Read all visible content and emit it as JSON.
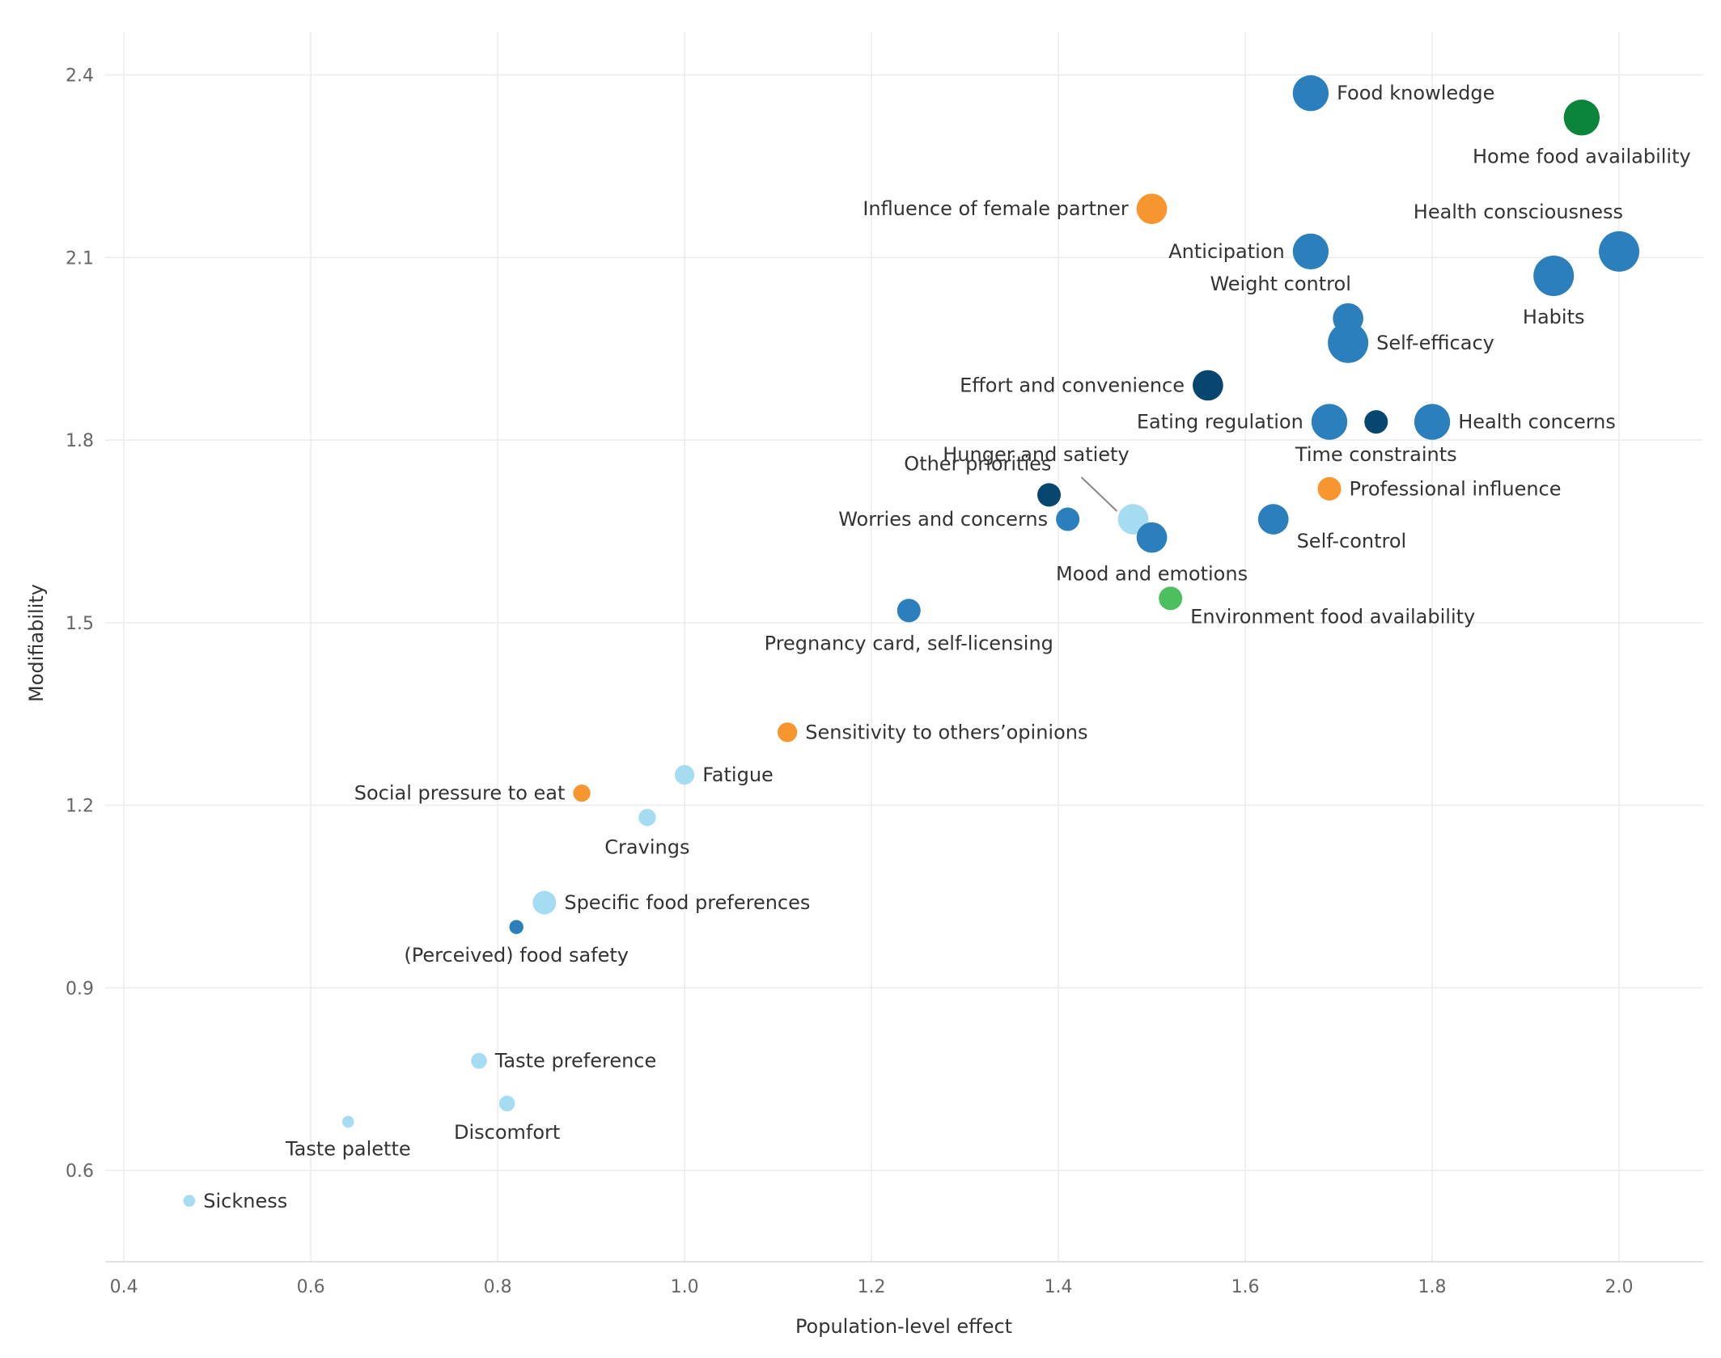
{
  "colors": {
    "light_blue": "#a6dcf2",
    "mid_blue": "#2b7fbc",
    "dark_blue": "#06466f",
    "orange": "#f7962e",
    "dark_green": "#0b843c",
    "light_green": "#4cbf5f"
  },
  "chart_data": {
    "type": "scatter",
    "title": "",
    "xlabel": "Population-level effect",
    "ylabel": "Modifiability",
    "xlim": [
      0.38,
      2.09
    ],
    "ylim": [
      0.45,
      2.47
    ],
    "xticks": [
      0.4,
      0.6,
      0.8,
      1.0,
      1.2,
      1.4,
      1.6,
      1.8,
      2.0
    ],
    "yticks": [
      0.6,
      0.9,
      1.2,
      1.5,
      1.8,
      2.1,
      2.4
    ],
    "xtick_labels": [
      "0.4",
      "0.6",
      "0.8",
      "1.0",
      "1.2",
      "1.4",
      "1.6",
      "1.8",
      "2.0"
    ],
    "ytick_labels": [
      "0.6",
      "0.9",
      "1.2",
      "1.5",
      "1.8",
      "2.1",
      "2.4"
    ],
    "grid": true,
    "points": [
      {
        "label": "Food knowledge",
        "x": 1.67,
        "y": 2.37,
        "size": 3,
        "color": "mid_blue",
        "label_pos": "right"
      },
      {
        "label": "Home food availability",
        "x": 1.96,
        "y": 2.33,
        "size": 3,
        "color": "dark_green",
        "label_pos": "below"
      },
      {
        "label": "Influence of female partner",
        "x": 1.5,
        "y": 2.18,
        "size": 2,
        "color": "orange",
        "label_pos": "left"
      },
      {
        "label": "Health consciousness",
        "x": 2.0,
        "y": 2.11,
        "size": 4,
        "color": "mid_blue",
        "label_pos": "above-left"
      },
      {
        "label": "Anticipation",
        "x": 1.67,
        "y": 2.11,
        "size": 3,
        "color": "mid_blue",
        "label_pos": "left"
      },
      {
        "label": "Habits",
        "x": 1.93,
        "y": 2.07,
        "size": 4,
        "color": "mid_blue",
        "label_pos": "below"
      },
      {
        "label": "Weight control",
        "x": 1.71,
        "y": 2.0,
        "size": 2,
        "color": "mid_blue",
        "label_pos": "above-left"
      },
      {
        "label": "Self-efficacy",
        "x": 1.71,
        "y": 1.96,
        "size": 4,
        "color": "mid_blue",
        "label_pos": "right"
      },
      {
        "label": "Effort and convenience",
        "x": 1.56,
        "y": 1.89,
        "size": 2,
        "color": "dark_blue",
        "label_pos": "left"
      },
      {
        "label": "Eating regulation",
        "x": 1.69,
        "y": 1.83,
        "size": 3,
        "color": "mid_blue",
        "label_pos": "left"
      },
      {
        "label": "Time constraints",
        "x": 1.74,
        "y": 1.83,
        "size": 1,
        "color": "dark_blue",
        "label_pos": "below"
      },
      {
        "label": "Health concerns",
        "x": 1.8,
        "y": 1.83,
        "size": 3,
        "color": "mid_blue",
        "label_pos": "right"
      },
      {
        "label": "Professional influence",
        "x": 1.69,
        "y": 1.72,
        "size": 1,
        "color": "orange",
        "label_pos": "right"
      },
      {
        "label": "Other priorities",
        "x": 1.39,
        "y": 1.71,
        "size": 1,
        "color": "dark_blue",
        "label_pos": "above-left"
      },
      {
        "label": "Hunger and satiety",
        "x": 1.48,
        "y": 1.67,
        "size": 2,
        "color": "light_blue",
        "label_pos": "leader"
      },
      {
        "label": "Worries and concerns",
        "x": 1.41,
        "y": 1.67,
        "size": 1,
        "color": "mid_blue",
        "label_pos": "left"
      },
      {
        "label": "Self-control",
        "x": 1.63,
        "y": 1.67,
        "size": 2,
        "color": "mid_blue",
        "label_pos": "right-below"
      },
      {
        "label": "Mood and emotions",
        "x": 1.5,
        "y": 1.64,
        "size": 2,
        "color": "mid_blue",
        "label_pos": "below"
      },
      {
        "label": "Environment food availability",
        "x": 1.52,
        "y": 1.54,
        "size": 1,
        "color": "light_green",
        "label_pos": "right-below"
      },
      {
        "label": "Pregnancy card, self-licensing",
        "x": 1.24,
        "y": 1.52,
        "size": 1,
        "color": "mid_blue",
        "label_pos": "below"
      },
      {
        "label": "Sensitivity to others’opinions",
        "x": 1.11,
        "y": 1.32,
        "size": 0.6,
        "color": "orange",
        "label_pos": "right"
      },
      {
        "label": "Fatigue",
        "x": 1.0,
        "y": 1.25,
        "size": 0.6,
        "color": "light_blue",
        "label_pos": "right"
      },
      {
        "label": "Social pressure to eat",
        "x": 0.89,
        "y": 1.22,
        "size": 0.4,
        "color": "orange",
        "label_pos": "left"
      },
      {
        "label": "Cravings",
        "x": 0.96,
        "y": 1.18,
        "size": 0.4,
        "color": "light_blue",
        "label_pos": "below"
      },
      {
        "label": "Specific food preferences",
        "x": 0.85,
        "y": 1.04,
        "size": 1,
        "color": "light_blue",
        "label_pos": "right"
      },
      {
        "label": "(Perceived) food safety",
        "x": 0.82,
        "y": 1.0,
        "size": 0.2,
        "color": "mid_blue",
        "label_pos": "below"
      },
      {
        "label": "Taste preference",
        "x": 0.78,
        "y": 0.78,
        "size": 0.3,
        "color": "light_blue",
        "label_pos": "right"
      },
      {
        "label": "Discomfort",
        "x": 0.81,
        "y": 0.71,
        "size": 0.3,
        "color": "light_blue",
        "label_pos": "below"
      },
      {
        "label": "Taste palette",
        "x": 0.64,
        "y": 0.68,
        "size": 0.1,
        "color": "light_blue",
        "label_pos": "below"
      },
      {
        "label": "Sickness",
        "x": 0.47,
        "y": 0.55,
        "size": 0.1,
        "color": "light_blue",
        "label_pos": "right"
      }
    ]
  }
}
